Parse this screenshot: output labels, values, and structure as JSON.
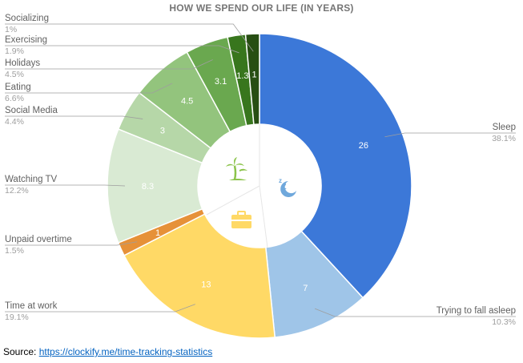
{
  "chart_data": {
    "type": "pie",
    "style": "donut",
    "title": "HOW WE SPEND OUR LIFE (IN YEARS)",
    "slices": [
      {
        "label": "Sleep",
        "value": 26,
        "value_label": "26",
        "percent": "38.1%",
        "color": "#3c78d8",
        "label_color": "#ffffff"
      },
      {
        "label": "Trying to fall asleep",
        "value": 7,
        "value_label": "7",
        "percent": "10.3%",
        "color": "#9fc5e8",
        "label_color": "#ffffff"
      },
      {
        "label": "Time at work",
        "value": 13,
        "value_label": "13",
        "percent": "19.1%",
        "color": "#ffd966",
        "label_color": "#ffffff"
      },
      {
        "label": "Unpaid overtime",
        "value": 1,
        "value_label": "1",
        "percent": "1.5%",
        "color": "#e69138",
        "label_color": "#ffffff"
      },
      {
        "label": "Watching TV",
        "value": 8.3,
        "value_label": "8.3",
        "percent": "12.2%",
        "color": "#d9ead3",
        "label_color": "#ffffff"
      },
      {
        "label": "Social Media",
        "value": 3,
        "value_label": "3",
        "percent": "4.4%",
        "color": "#b6d7a8",
        "label_color": "#ffffff"
      },
      {
        "label": "Eating",
        "value": 4.5,
        "value_label": "4.5",
        "percent": "6.6%",
        "color": "#93c47d",
        "label_color": "#ffffff"
      },
      {
        "label": "Holidays",
        "value": 3.1,
        "value_label": "3.1",
        "percent": "4.5%",
        "color": "#6aa84f",
        "label_color": "#ffffff"
      },
      {
        "label": "Exercising",
        "value": 1.3,
        "value_label": "1.3",
        "percent": "1.9%",
        "color": "#38761d",
        "label_color": "#ffffff"
      },
      {
        "label": "Socializing",
        "value": 1,
        "value_label": "1",
        "percent": "1%",
        "color": "#274e13",
        "label_color": "#ffffff"
      }
    ],
    "center_icons": [
      "palm-tree-icon",
      "sleeping-moon-icon",
      "briefcase-icon"
    ]
  },
  "source": {
    "prefix": "Source: ",
    "link_text": "https://clockify.me/time-tracking-statistics"
  },
  "colors": {
    "title": "#757575",
    "label_text": "#616161",
    "percent_text": "#9e9e9e",
    "leader_line": "#9e9e9e",
    "link": "#0563c1"
  }
}
